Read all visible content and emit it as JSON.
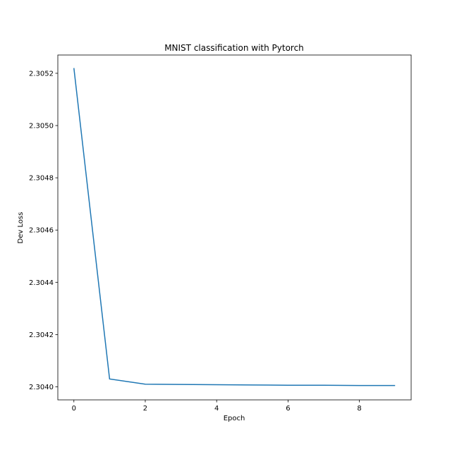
{
  "chart_data": {
    "type": "line",
    "title": "MNIST classification with Pytorch",
    "xlabel": "Epoch",
    "ylabel": "Dev Loss",
    "xlim": [
      -0.45,
      9.45
    ],
    "ylim": [
      2.30395,
      2.30527
    ],
    "xticks": [
      0,
      2,
      4,
      6,
      8
    ],
    "yticks": [
      2.304,
      2.3042,
      2.3044,
      2.3046,
      2.3048,
      2.305,
      2.3052
    ],
    "ytick_labels": [
      "2.3040",
      "2.3042",
      "2.3044",
      "2.3046",
      "2.3048",
      "2.3050",
      "2.3052"
    ],
    "grid": false,
    "series": [
      {
        "color": "#1f77b4",
        "x": [
          0,
          1,
          2,
          3,
          4,
          5,
          6,
          7,
          8,
          9
        ],
        "y": [
          2.30522,
          2.30403,
          2.30401,
          2.304009,
          2.304008,
          2.304007,
          2.304006,
          2.304006,
          2.304005,
          2.304005
        ]
      }
    ]
  }
}
